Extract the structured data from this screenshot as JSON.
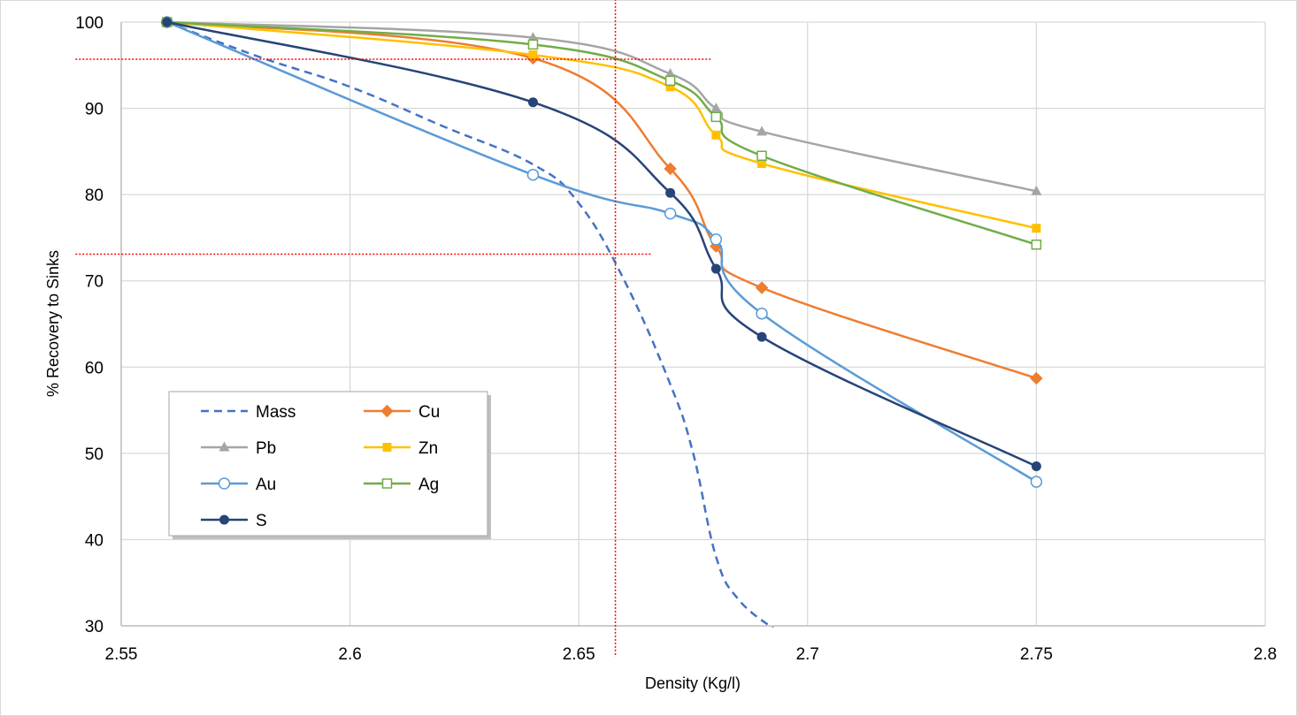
{
  "chart_data": {
    "type": "line",
    "xlabel": "Density (Kg/l)",
    "ylabel": "% Recovery to Sinks",
    "xlim": [
      2.55,
      2.8
    ],
    "ylim": [
      30,
      100
    ],
    "x_ticks": [
      "2.55",
      "2.6",
      "2.65",
      "2.7",
      "2.75",
      "2.8"
    ],
    "y_ticks": [
      "30",
      "40",
      "50",
      "60",
      "70",
      "80",
      "90",
      "100"
    ],
    "grid": true,
    "legend_position": "bottom-left",
    "series": [
      {
        "name": "Mass",
        "color": "#4472c4",
        "marker": "none",
        "dashed": true,
        "x": [
          2.56,
          2.58,
          2.6,
          2.62,
          2.64,
          2.65,
          2.66,
          2.67,
          2.675,
          2.68,
          2.685,
          2.693
        ],
        "y": [
          100,
          96,
          92.5,
          88,
          83.5,
          79,
          70,
          58,
          50,
          38,
          33,
          29.5
        ]
      },
      {
        "name": "Cu",
        "color": "#ed7d31",
        "marker": "diamond",
        "x": [
          2.56,
          2.64,
          2.67,
          2.68,
          2.69,
          2.75
        ],
        "y": [
          100,
          95.8,
          83,
          74,
          69.2,
          58.7
        ]
      },
      {
        "name": "Pb",
        "color": "#a5a5a5",
        "marker": "triangle",
        "x": [
          2.56,
          2.64,
          2.67,
          2.68,
          2.69,
          2.75
        ],
        "y": [
          100,
          98.2,
          94,
          90,
          87.3,
          80.4
        ]
      },
      {
        "name": "Zn",
        "color": "#ffc000",
        "marker": "square",
        "x": [
          2.56,
          2.64,
          2.67,
          2.68,
          2.69,
          2.75
        ],
        "y": [
          100,
          96.2,
          92.5,
          86.9,
          83.6,
          76.1
        ]
      },
      {
        "name": "Au",
        "color": "#5b9bd5",
        "marker": "circle-open",
        "x": [
          2.56,
          2.64,
          2.67,
          2.68,
          2.69,
          2.75
        ],
        "y": [
          100,
          82.3,
          77.8,
          74.8,
          66.2,
          46.7
        ]
      },
      {
        "name": "Ag",
        "color": "#70ad47",
        "marker": "square-open",
        "x": [
          2.56,
          2.64,
          2.67,
          2.68,
          2.69,
          2.75
        ],
        "y": [
          100,
          97.4,
          93.2,
          89,
          84.5,
          74.2
        ]
      },
      {
        "name": "S",
        "color": "#264478",
        "marker": "circle",
        "x": [
          2.56,
          2.64,
          2.67,
          2.68,
          2.69,
          2.75
        ],
        "y": [
          100,
          90.7,
          80.2,
          71.4,
          63.5,
          48.5
        ]
      }
    ],
    "reference_lines": [
      {
        "orientation": "vertical",
        "x": 2.658,
        "y_from": 30,
        "y_to": 103.5,
        "color": "#ff0000"
      },
      {
        "orientation": "horizontal",
        "y": 95.7,
        "x_from": 2.54,
        "x_to": 2.679,
        "color": "#ff0000"
      },
      {
        "orientation": "horizontal",
        "y": 73.1,
        "x_from": 2.54,
        "x_to": 2.666,
        "color": "#ff0000"
      }
    ]
  }
}
